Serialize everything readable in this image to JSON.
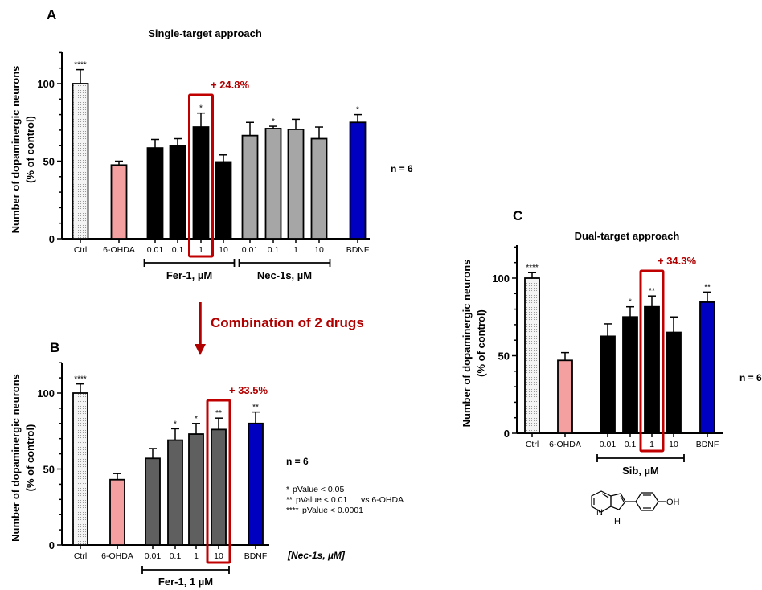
{
  "colors": {
    "accent_red": "#b00000",
    "highlight_box": "#c00000",
    "fer_black": "#000000",
    "nec_grey": "#a6a6a6",
    "combo_grey": "#5f5f5f",
    "ohda_pink": "#f4a0a0",
    "bdnf_blue": "#0000c0",
    "ctrl_fill": "#f2f2f2"
  },
  "arrow_annotation": {
    "text": "Combination of 2 drugs"
  },
  "chart_data": [
    {
      "panel": "A",
      "type": "bar",
      "title": "Single-target approach",
      "ylabel_line1": "Number of dopaminergic neurons",
      "ylabel_line2": "(% of control)",
      "xlabel": "",
      "ylim": [
        0,
        120
      ],
      "yticks": [
        0,
        50,
        100
      ],
      "categories": [
        "Ctrl",
        "6-OHDA",
        "0.01",
        "0.1",
        "1",
        "10",
        "0.01",
        "0.1",
        "1",
        "10",
        "BDNF"
      ],
      "values": [
        100,
        47.5,
        58.5,
        60,
        72,
        49.5,
        66.5,
        71,
        70.5,
        64.5,
        75
      ],
      "error_upper": [
        109,
        50,
        64,
        64.5,
        81,
        54,
        75,
        72.5,
        77,
        72,
        80
      ],
      "significance": [
        "****",
        "",
        "",
        "",
        "*",
        "",
        "",
        "*",
        "",
        "",
        "*"
      ],
      "bar_styles": [
        "ctrl",
        "ohda",
        "fer",
        "fer",
        "fer",
        "fer",
        "nec",
        "nec",
        "nec",
        "nec",
        "bdnf"
      ],
      "groups": [
        {
          "label": "Fer-1, µM",
          "from": 2,
          "to": 5
        },
        {
          "label": "Nec-1s, µM",
          "from": 6,
          "to": 9
        }
      ],
      "highlight_index": 4,
      "highlight_label": "+ 24.8%",
      "n_label": "n = 6"
    },
    {
      "panel": "B",
      "type": "bar",
      "title": "",
      "ylabel_line1": "Number of dopaminergic neurons",
      "ylabel_line2": "(% of control)",
      "xlabel": "[Nec-1s, µM]",
      "ylim": [
        0,
        120
      ],
      "yticks": [
        0,
        50,
        100
      ],
      "categories": [
        "Ctrl",
        "6-OHDA",
        "0.01",
        "0.1",
        "1",
        "10",
        "BDNF"
      ],
      "values": [
        100,
        43,
        57,
        69,
        73,
        76,
        80
      ],
      "error_upper": [
        106,
        47,
        63.5,
        76.5,
        80,
        83.5,
        87.5
      ],
      "significance": [
        "****",
        "",
        "",
        "*",
        "*",
        "**",
        "**"
      ],
      "bar_styles": [
        "ctrl",
        "ohda",
        "combo",
        "combo",
        "combo",
        "combo",
        "bdnf"
      ],
      "groups": [
        {
          "label": "Fer-1, 1 µM",
          "from": 2,
          "to": 5
        }
      ],
      "highlight_index": 5,
      "highlight_label": "+ 33.5%",
      "n_label": "n = 6",
      "legend": [
        {
          "stars": "*",
          "text": "pValue < 0.05"
        },
        {
          "stars": "**",
          "text": "pValue < 0.01"
        },
        {
          "stars": "****",
          "text": "pValue < 0.0001"
        }
      ],
      "legend_vs": "vs 6-OHDA"
    },
    {
      "panel": "C",
      "type": "bar",
      "title": "Dual-target approach",
      "ylabel_line1": "Number of dopaminergic neurons",
      "ylabel_line2": "(% of control)",
      "xlabel": "",
      "ylim": [
        0,
        120
      ],
      "yticks": [
        0,
        50,
        100
      ],
      "categories": [
        "Ctrl",
        "6-OHDA",
        "0.01",
        "0.1",
        "1",
        "10",
        "BDNF"
      ],
      "values": [
        100,
        47,
        62.5,
        75,
        81.5,
        65,
        84.5
      ],
      "error_upper": [
        103.5,
        52,
        70.5,
        81.5,
        88.5,
        75,
        91
      ],
      "significance": [
        "****",
        "",
        "",
        "*",
        "**",
        "",
        "**"
      ],
      "bar_styles": [
        "ctrl",
        "ohda",
        "fer",
        "fer",
        "fer",
        "fer",
        "bdnf"
      ],
      "groups": [
        {
          "label": "Sib, µM",
          "from": 2,
          "to": 5
        }
      ],
      "highlight_index": 4,
      "highlight_label": "+ 34.3%",
      "n_label": "n = 6",
      "structure_labels": {
        "n": "N",
        "nh": "H",
        "oh": "OH"
      }
    }
  ]
}
